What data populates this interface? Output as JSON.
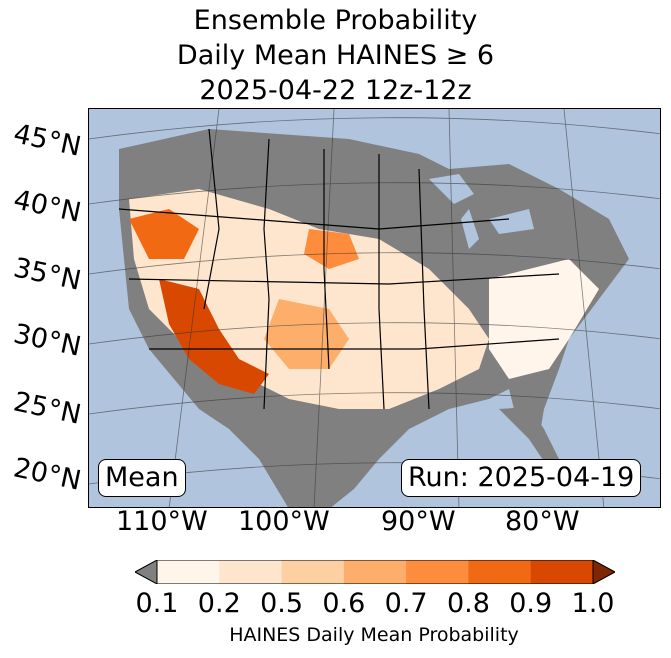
{
  "title": {
    "line1": "Ensemble Probability",
    "line2": "Daily Mean HAINES ≥ 6",
    "line3": "2025-04-22 12z-12z"
  },
  "lat_labels": [
    "45°N",
    "40°N",
    "35°N",
    "30°N",
    "25°N",
    "20°N"
  ],
  "lon_labels": [
    "110°W",
    "100°W",
    "90°W",
    "80°W"
  ],
  "boxes": {
    "left": "Mean",
    "right": "Run: 2025-04-19"
  },
  "colorbar": {
    "label": "HAINES Daily Mean Probability",
    "ticks": [
      "0.1",
      "0.2",
      "0.5",
      "0.6",
      "0.7",
      "0.8",
      "0.9",
      "1.0"
    ],
    "colors": [
      "#fff5eb",
      "#fee6ce",
      "#fdd0a2",
      "#fdae6b",
      "#fd8d3c",
      "#f16913",
      "#d94801",
      "#8c2d04"
    ],
    "under_color": "#808080",
    "over_color": "#7f2704"
  },
  "colors": {
    "ocean": "#b0c4de",
    "land_low": "#808080"
  }
}
